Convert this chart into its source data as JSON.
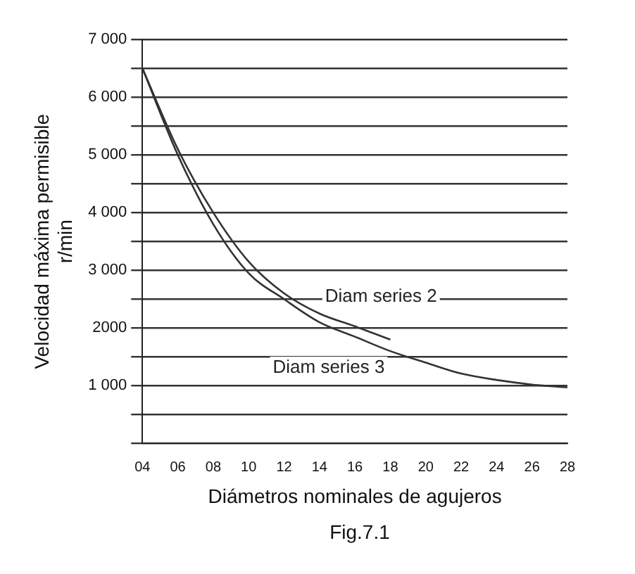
{
  "chart_data": {
    "type": "line",
    "xlabel": "Diámetros nominales de agujeros",
    "ylabel": "Velocidad máxima permisible\nr/min",
    "categories": [
      "04",
      "06",
      "08",
      "10",
      "12",
      "14",
      "16",
      "18",
      "20",
      "22",
      "24",
      "26",
      "28"
    ],
    "series": [
      {
        "name": "Diam series 2",
        "color": "#333333",
        "values": [
          6500,
          5100,
          4000,
          3150,
          2600,
          2250,
          2030,
          1800,
          null,
          null,
          null,
          null,
          null
        ]
      },
      {
        "name": "Diam series 3",
        "color": "#333333",
        "values": [
          6500,
          5000,
          3800,
          2950,
          2500,
          2100,
          1850,
          1600,
          1400,
          1210,
          1100,
          1020,
          970
        ]
      }
    ],
    "ylim": [
      0,
      7000
    ],
    "yticks": [
      {
        "value": 0,
        "label": null
      },
      {
        "value": 500,
        "label": null
      },
      {
        "value": 1000,
        "label": "1 000"
      },
      {
        "value": 1500,
        "label": null
      },
      {
        "value": 2000,
        "label": "2000"
      },
      {
        "value": 2500,
        "label": null
      },
      {
        "value": 3000,
        "label": "3 000"
      },
      {
        "value": 3500,
        "label": null
      },
      {
        "value": 4000,
        "label": "4 000"
      },
      {
        "value": 4500,
        "label": null
      },
      {
        "value": 5000,
        "label": "5 000"
      },
      {
        "value": 5500,
        "label": null
      },
      {
        "value": 6000,
        "label": "6 000"
      },
      {
        "value": 6500,
        "label": null
      },
      {
        "value": 7000,
        "label": "7 000"
      }
    ],
    "grid": "y",
    "legend": false,
    "marker": "none",
    "line_style": "solid",
    "annotations": [
      "Fig.7.1"
    ]
  }
}
